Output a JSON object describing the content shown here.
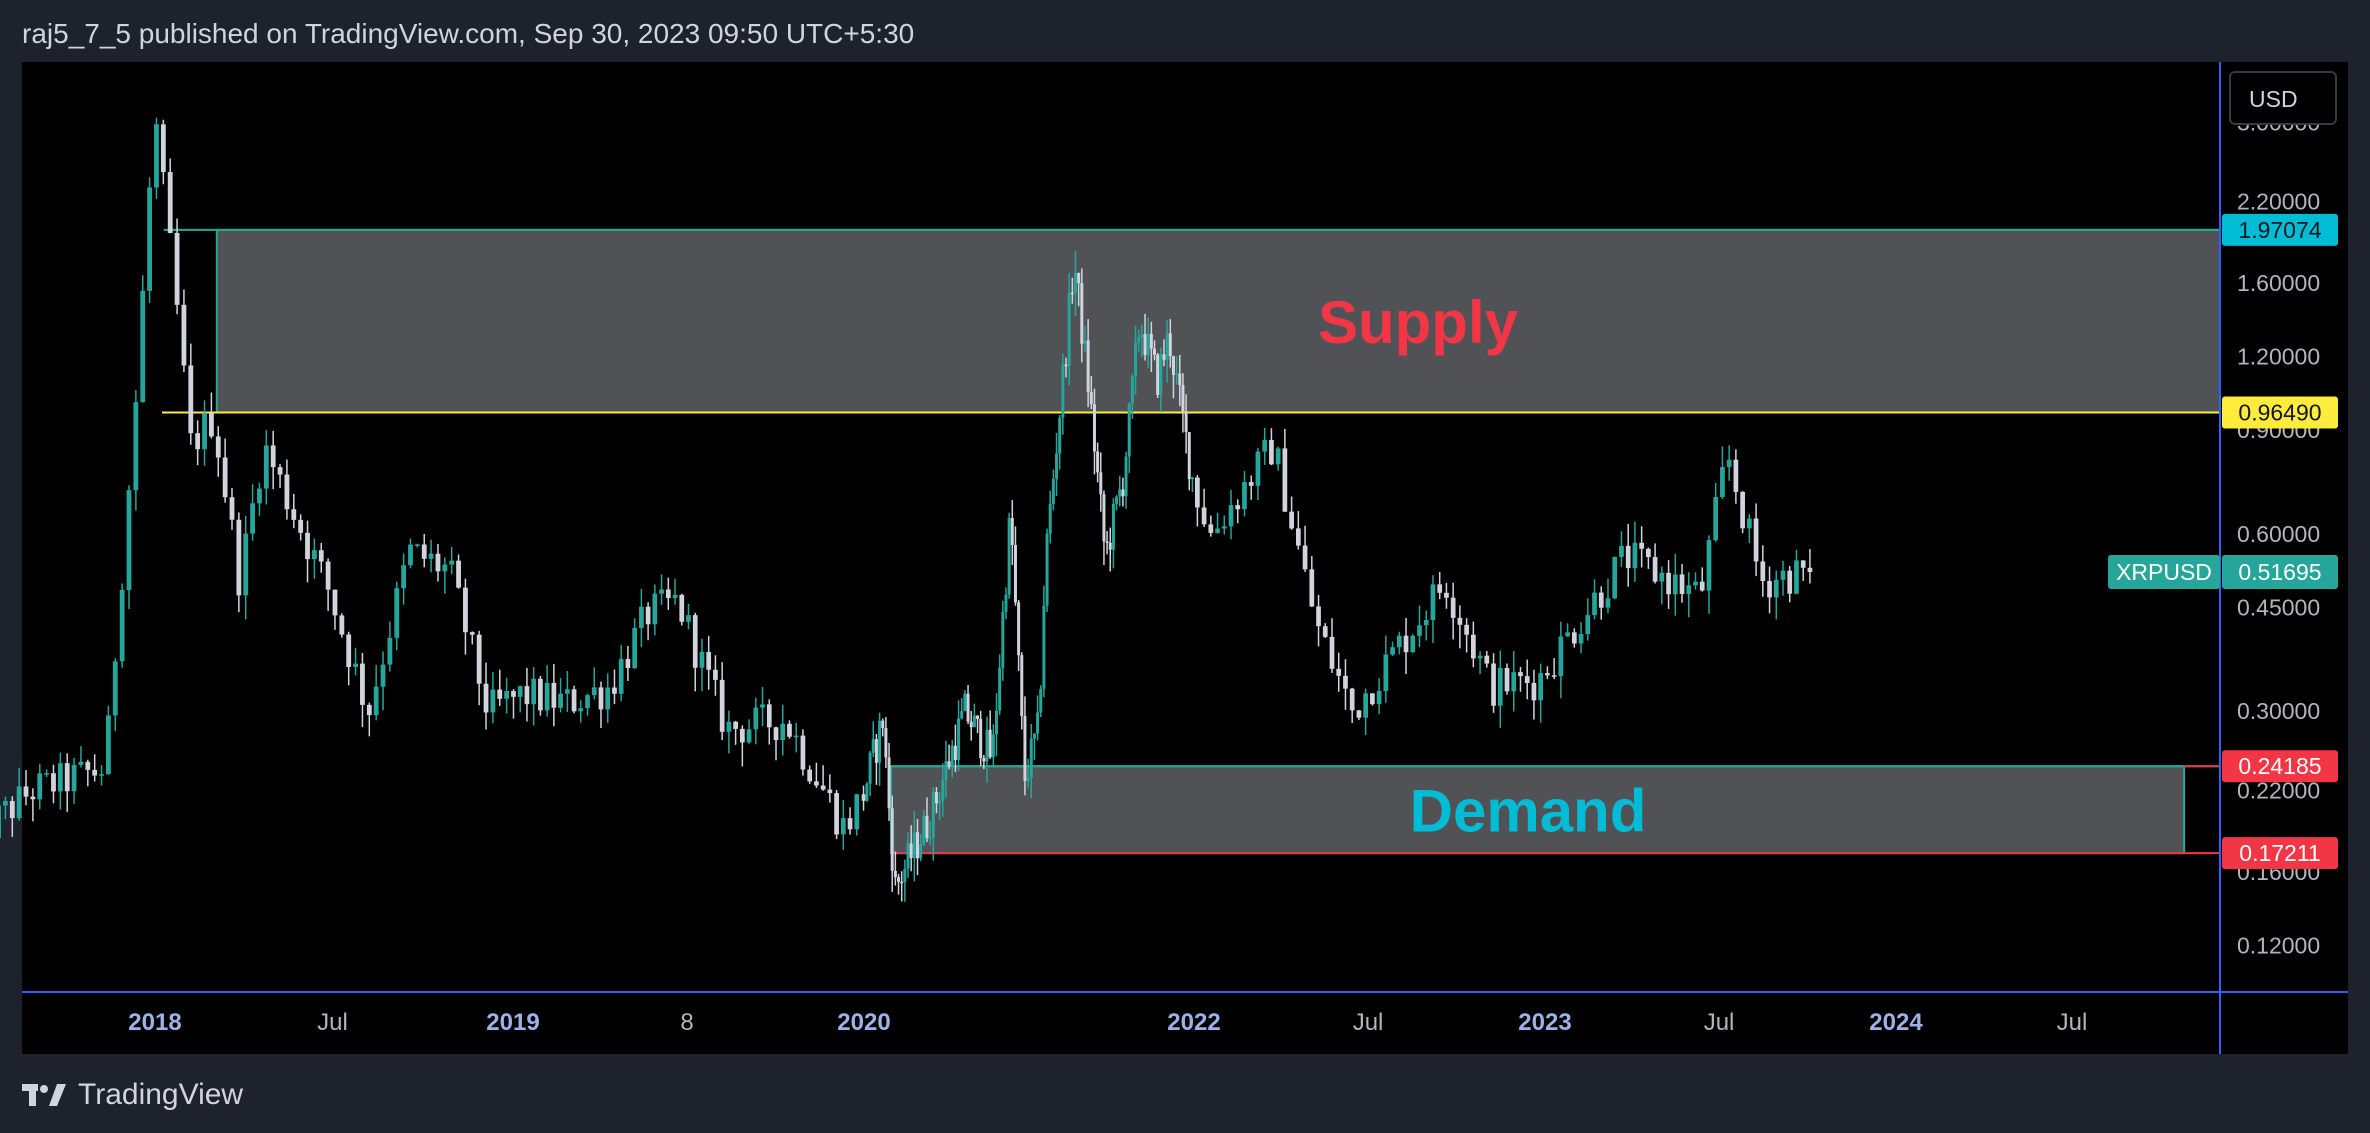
{
  "header": {
    "text": "raj5_7_5 published on TradingView.com, Sep 30, 2023 09:50 UTC+5:30"
  },
  "footer": {
    "brand": "TradingView"
  },
  "currency_button": {
    "label": "USD"
  },
  "colors": {
    "up": "#26a69a",
    "down": "#d1d4dc",
    "supply_label": "#f23645",
    "demand_label": "#00bcd4",
    "zone_fill": "#55565b",
    "supply_top_line": "#22ab94",
    "supply_bottom_line": "#ffeb3b",
    "demand_top_line": "#22ab94",
    "demand_bottom_line": "#f23645",
    "axis_text": "#b2b5be",
    "time_bold": "#9db2e8"
  },
  "chart_data": {
    "type": "candlestick",
    "symbol": "XRPUSD",
    "scale": "log",
    "ylim": [
      0.1,
      3.8
    ],
    "y_ticks": [
      0.12,
      0.16,
      0.22,
      0.3,
      0.45,
      0.6,
      0.9,
      1.2,
      1.6,
      2.2,
      3.0
    ],
    "y_tick_labels": [
      "0.12000",
      "0.16000",
      "0.22000",
      "0.30000",
      "0.45000",
      "0.60000",
      "0.90000",
      "1.20000",
      "1.60000",
      "2.20000",
      "3.00000"
    ],
    "x_axis": [
      {
        "label": "2018",
        "date": "2018-01-01",
        "bold": true
      },
      {
        "label": "Jul",
        "date": "2018-07-01",
        "bold": false
      },
      {
        "label": "2019",
        "date": "2019-01-01",
        "bold": true
      },
      {
        "label": "8",
        "date": "2019-07-01",
        "bold": false
      },
      {
        "label": "2020",
        "date": "2020-01-01",
        "bold": true
      },
      {
        "label": "2022",
        "date": "2022-01-01",
        "bold": true
      },
      {
        "label": "Jul",
        "date": "2022-07-01",
        "bold": false
      },
      {
        "label": "2023",
        "date": "2023-01-01",
        "bold": true
      },
      {
        "label": "Jul",
        "date": "2023-07-01",
        "bold": false
      },
      {
        "label": "2024",
        "date": "2024-01-01",
        "bold": true
      },
      {
        "label": "Jul",
        "date": "2024-07-01",
        "bold": false
      }
    ],
    "price_path": [
      [
        "2017-07-01",
        0.18
      ],
      [
        "2017-09-01",
        0.22
      ],
      [
        "2017-11-15",
        0.24
      ],
      [
        "2017-12-15",
        0.95
      ],
      [
        "2018-01-04",
        3.1
      ],
      [
        "2018-01-25",
        1.55
      ],
      [
        "2018-02-10",
        0.85
      ],
      [
        "2018-03-05",
        0.95
      ],
      [
        "2018-04-01",
        0.5
      ],
      [
        "2018-04-25",
        0.85
      ],
      [
        "2018-06-01",
        0.62
      ],
      [
        "2018-07-01",
        0.48
      ],
      [
        "2018-08-10",
        0.3
      ],
      [
        "2018-09-21",
        0.56
      ],
      [
        "2018-11-01",
        0.52
      ],
      [
        "2018-12-10",
        0.3
      ],
      [
        "2019-01-15",
        0.32
      ],
      [
        "2019-03-01",
        0.31
      ],
      [
        "2019-04-15",
        0.33
      ],
      [
        "2019-05-25",
        0.44
      ],
      [
        "2019-06-25",
        0.46
      ],
      [
        "2019-08-15",
        0.28
      ],
      [
        "2019-10-15",
        0.29
      ],
      [
        "2019-12-15",
        0.19
      ],
      [
        "2020-02-15",
        0.29
      ],
      [
        "2020-03-13",
        0.15
      ],
      [
        "2020-06-01",
        0.2
      ],
      [
        "2020-08-15",
        0.3
      ],
      [
        "2020-10-15",
        0.25
      ],
      [
        "2020-11-24",
        0.65
      ],
      [
        "2020-12-25",
        0.23
      ],
      [
        "2021-01-25",
        0.28
      ],
      [
        "2021-02-10",
        0.55
      ],
      [
        "2021-04-14",
        1.75
      ],
      [
        "2021-05-20",
        1.0
      ],
      [
        "2021-06-22",
        0.55
      ],
      [
        "2021-08-01",
        0.75
      ],
      [
        "2021-09-06",
        1.38
      ],
      [
        "2021-10-15",
        1.1
      ],
      [
        "2021-11-10",
        1.3
      ],
      [
        "2021-12-20",
        0.85
      ],
      [
        "2022-01-22",
        0.6
      ],
      [
        "2022-03-28",
        0.85
      ],
      [
        "2022-05-12",
        0.42
      ],
      [
        "2022-06-18",
        0.3
      ],
      [
        "2022-09-23",
        0.5
      ],
      [
        "2022-11-09",
        0.33
      ],
      [
        "2022-12-29",
        0.34
      ],
      [
        "2023-02-01",
        0.41
      ],
      [
        "2023-03-29",
        0.55
      ],
      [
        "2023-06-15",
        0.47
      ],
      [
        "2023-07-13",
        0.82
      ],
      [
        "2023-08-17",
        0.5
      ],
      [
        "2023-09-30",
        0.51695
      ]
    ],
    "zones": [
      {
        "name": "Supply",
        "label": "Supply",
        "top": 1.97074,
        "bottom": 0.9649,
        "start": "2018-03-05",
        "end": "2024-12-31"
      },
      {
        "name": "Demand",
        "label": "Demand",
        "top": 0.24185,
        "bottom": 0.17211,
        "start": "2020-03-01",
        "end": "2024-10-25"
      }
    ],
    "price_labels": [
      {
        "text": "1.97074",
        "value": 1.97074,
        "bg": "#00bcd4",
        "fg": "#131722"
      },
      {
        "text": "0.96490",
        "value": 0.9649,
        "bg": "#ffeb3b",
        "fg": "#131722"
      },
      {
        "text": "0.24185",
        "value": 0.24185,
        "bg": "#f23645",
        "fg": "#ffffff"
      },
      {
        "text": "0.17211",
        "value": 0.17211,
        "bg": "#f23645",
        "fg": "#ffffff"
      }
    ],
    "last_price": {
      "symbol": "XRPUSD",
      "text": "0.51695",
      "value": 0.51695,
      "bg": "#26a69a"
    }
  }
}
